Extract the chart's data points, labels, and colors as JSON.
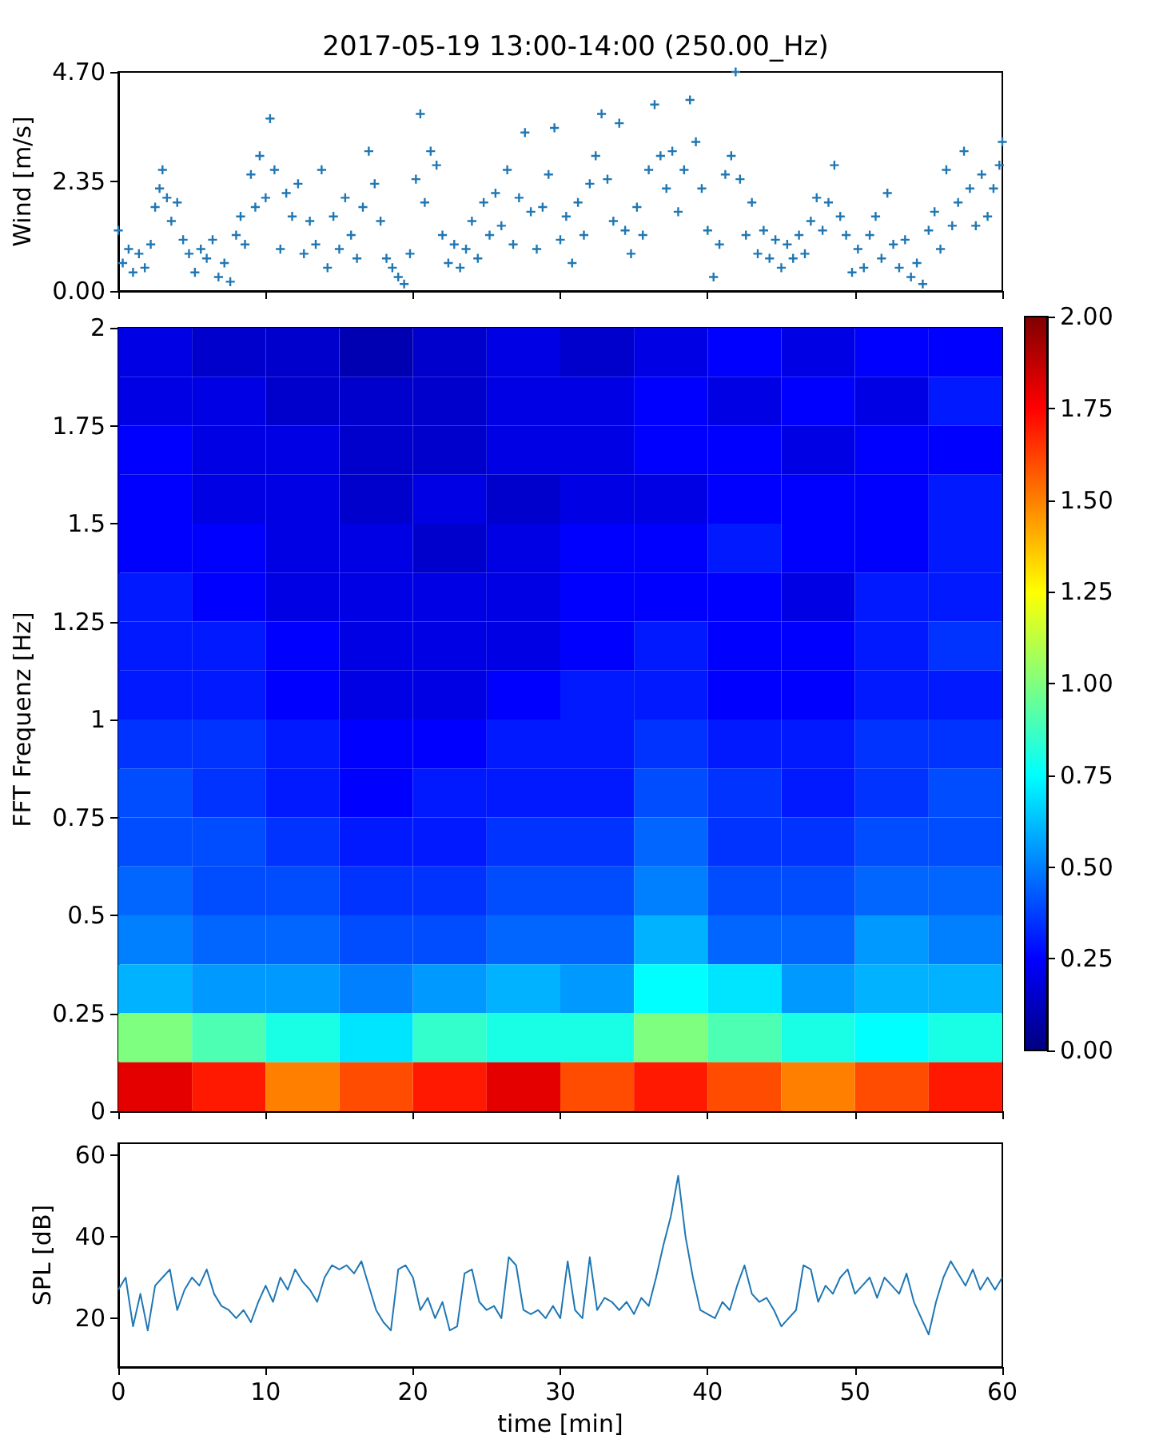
{
  "chart_data": [
    {
      "type": "scatter",
      "title": "2017-05-19 13:00-14:00 (250.00_Hz)",
      "ylabel": "Wind [m/s]",
      "color": "#1f77b4",
      "marker": "cross",
      "tick_labels": "y",
      "x": [
        0,
        0.3,
        0.7,
        1,
        1.4,
        1.8,
        2.2,
        2.5,
        2.8,
        3,
        3.3,
        3.6,
        4,
        4.4,
        4.8,
        5.2,
        5.6,
        6,
        6.4,
        6.8,
        7.2,
        7.6,
        8,
        8.3,
        8.6,
        9,
        9.3,
        9.6,
        10,
        10.3,
        10.6,
        11,
        11.4,
        11.8,
        12.2,
        12.6,
        13,
        13.4,
        13.8,
        14.2,
        14.6,
        15,
        15.4,
        15.8,
        16.2,
        16.6,
        17,
        17.4,
        17.8,
        18.2,
        18.6,
        19,
        19.4,
        19.8,
        20.2,
        20.5,
        20.8,
        21.2,
        21.6,
        22,
        22.4,
        22.8,
        23.2,
        23.6,
        24,
        24.4,
        24.8,
        25.2,
        25.6,
        26,
        26.4,
        26.8,
        27.2,
        27.6,
        28,
        28.4,
        28.8,
        29.2,
        29.6,
        30,
        30.4,
        30.8,
        31.2,
        31.6,
        32,
        32.4,
        32.8,
        33.2,
        33.6,
        34,
        34.4,
        34.8,
        35.2,
        35.6,
        36,
        36.4,
        36.8,
        37.2,
        37.6,
        38,
        38.4,
        38.8,
        39.2,
        39.6,
        40,
        40.4,
        40.8,
        41.2,
        41.6,
        41.9,
        42.2,
        42.6,
        43,
        43.4,
        43.8,
        44.2,
        44.6,
        45,
        45.4,
        45.8,
        46.2,
        46.6,
        47,
        47.4,
        47.8,
        48.2,
        48.6,
        49,
        49.4,
        49.8,
        50.2,
        50.6,
        51,
        51.4,
        51.8,
        52.2,
        52.6,
        53,
        53.4,
        53.8,
        54.2,
        54.6,
        55,
        55.4,
        55.8,
        56.2,
        56.6,
        57,
        57.4,
        57.8,
        58.2,
        58.6,
        59,
        59.4,
        59.8,
        60
      ],
      "values": [
        1.3,
        0.6,
        0.9,
        0.4,
        0.8,
        0.5,
        1.0,
        1.8,
        2.2,
        2.6,
        2.0,
        1.5,
        1.9,
        1.1,
        0.8,
        0.4,
        0.9,
        0.7,
        1.1,
        0.3,
        0.6,
        0.2,
        1.2,
        1.6,
        1.0,
        2.5,
        1.8,
        2.9,
        2.0,
        3.7,
        2.6,
        0.9,
        2.1,
        1.6,
        2.3,
        0.8,
        1.5,
        1.0,
        2.6,
        0.5,
        1.6,
        0.9,
        2.0,
        1.2,
        0.7,
        1.8,
        3.0,
        2.3,
        1.5,
        0.7,
        0.5,
        0.3,
        0.15,
        0.8,
        2.4,
        3.8,
        1.9,
        3.0,
        2.7,
        1.2,
        0.6,
        1.0,
        0.5,
        0.9,
        1.5,
        0.7,
        1.9,
        1.2,
        2.1,
        1.4,
        2.6,
        1.0,
        2.0,
        3.4,
        1.7,
        0.9,
        1.8,
        2.5,
        3.5,
        1.1,
        1.6,
        0.6,
        1.9,
        1.2,
        2.3,
        2.9,
        3.8,
        2.4,
        1.5,
        3.6,
        1.3,
        0.8,
        1.8,
        1.2,
        2.6,
        4.0,
        2.9,
        2.2,
        3.0,
        1.7,
        2.6,
        4.1,
        3.2,
        2.2,
        1.3,
        0.3,
        1.0,
        2.5,
        2.9,
        4.7,
        2.4,
        1.2,
        1.9,
        0.8,
        1.3,
        0.7,
        1.1,
        0.5,
        1.0,
        0.7,
        1.2,
        0.8,
        1.5,
        2.0,
        1.3,
        1.9,
        2.7,
        1.6,
        1.2,
        0.4,
        0.9,
        0.5,
        1.2,
        1.6,
        0.7,
        2.1,
        1.0,
        0.5,
        1.1,
        0.3,
        0.6,
        0.15,
        1.3,
        1.7,
        0.9,
        2.6,
        1.4,
        1.9,
        3.0,
        2.2,
        1.4,
        2.5,
        1.6,
        2.2,
        2.7,
        3.2
      ],
      "xlim": [
        0,
        60
      ],
      "xticks": [
        0,
        10,
        20,
        30,
        40,
        50,
        60
      ],
      "ylim": [
        0,
        4.7
      ],
      "yticks": [
        {
          "value": 0,
          "label": "0.00"
        },
        {
          "value": 2.35,
          "label": "2.35"
        },
        {
          "value": 4.7,
          "label": "4.70"
        }
      ]
    },
    {
      "type": "heatmap",
      "ylabel": "FFT Frequenz [Hz]",
      "tick_labels": "y",
      "cells": [
        [
          0.2,
          0.15,
          0.15,
          0.1,
          0.15,
          0.2,
          0.15,
          0.2,
          0.25,
          0.2,
          0.25,
          0.25
        ],
        [
          0.2,
          0.2,
          0.15,
          0.15,
          0.15,
          0.2,
          0.2,
          0.25,
          0.2,
          0.25,
          0.2,
          0.3
        ],
        [
          0.25,
          0.2,
          0.2,
          0.15,
          0.15,
          0.2,
          0.2,
          0.25,
          0.25,
          0.2,
          0.25,
          0.25
        ],
        [
          0.25,
          0.2,
          0.2,
          0.15,
          0.2,
          0.15,
          0.2,
          0.2,
          0.25,
          0.25,
          0.25,
          0.3
        ],
        [
          0.25,
          0.25,
          0.2,
          0.2,
          0.15,
          0.2,
          0.25,
          0.25,
          0.3,
          0.25,
          0.25,
          0.3
        ],
        [
          0.3,
          0.25,
          0.2,
          0.2,
          0.2,
          0.2,
          0.25,
          0.25,
          0.25,
          0.2,
          0.3,
          0.3
        ],
        [
          0.3,
          0.3,
          0.25,
          0.2,
          0.2,
          0.2,
          0.25,
          0.3,
          0.25,
          0.25,
          0.3,
          0.35
        ],
        [
          0.3,
          0.3,
          0.25,
          0.2,
          0.2,
          0.25,
          0.3,
          0.3,
          0.25,
          0.25,
          0.3,
          0.3
        ],
        [
          0.35,
          0.35,
          0.3,
          0.25,
          0.25,
          0.3,
          0.3,
          0.35,
          0.3,
          0.3,
          0.35,
          0.35
        ],
        [
          0.4,
          0.35,
          0.3,
          0.25,
          0.3,
          0.3,
          0.3,
          0.4,
          0.35,
          0.3,
          0.35,
          0.4
        ],
        [
          0.4,
          0.4,
          0.35,
          0.3,
          0.3,
          0.35,
          0.35,
          0.45,
          0.35,
          0.35,
          0.4,
          0.4
        ],
        [
          0.45,
          0.4,
          0.4,
          0.35,
          0.35,
          0.4,
          0.4,
          0.5,
          0.4,
          0.4,
          0.45,
          0.45
        ],
        [
          0.5,
          0.45,
          0.45,
          0.4,
          0.4,
          0.45,
          0.45,
          0.6,
          0.45,
          0.45,
          0.55,
          0.5
        ],
        [
          0.6,
          0.55,
          0.55,
          0.5,
          0.55,
          0.6,
          0.55,
          0.75,
          0.7,
          0.55,
          0.6,
          0.6
        ],
        [
          1.0,
          0.9,
          0.8,
          0.7,
          0.85,
          0.8,
          0.8,
          1.0,
          0.9,
          0.8,
          0.75,
          0.8
        ],
        [
          1.8,
          1.7,
          1.5,
          1.6,
          1.7,
          1.8,
          1.6,
          1.7,
          1.6,
          1.5,
          1.6,
          1.7
        ]
      ],
      "clim": [
        0,
        2
      ],
      "cticks": [
        {
          "value": 0,
          "label": "0.00"
        },
        {
          "value": 0.25,
          "label": "0.25"
        },
        {
          "value": 0.5,
          "label": "0.50"
        },
        {
          "value": 0.75,
          "label": "0.75"
        },
        {
          "value": 1,
          "label": "1.00"
        },
        {
          "value": 1.25,
          "label": "1.25"
        },
        {
          "value": 1.5,
          "label": "1.50"
        },
        {
          "value": 1.75,
          "label": "1.75"
        },
        {
          "value": 2,
          "label": "2.00"
        }
      ],
      "xlim": [
        0,
        60
      ],
      "xticks": [
        0,
        10,
        20,
        30,
        40,
        50,
        60
      ],
      "ylim": [
        0,
        2
      ],
      "yticks": [
        0,
        0.25,
        0.5,
        0.75,
        1,
        1.25,
        1.5,
        1.75,
        2
      ]
    },
    {
      "type": "line",
      "xlabel": "time [min]",
      "ylabel": "SPL [dB]",
      "color": "#1f77b4",
      "x": [
        0,
        0.5,
        1,
        1.5,
        2,
        2.5,
        3,
        3.5,
        4,
        4.5,
        5,
        5.5,
        6,
        6.5,
        7,
        7.5,
        8,
        8.5,
        9,
        9.5,
        10,
        10.5,
        11,
        11.5,
        12,
        12.5,
        13,
        13.5,
        14,
        14.5,
        15,
        15.5,
        16,
        16.5,
        17,
        17.5,
        18,
        18.5,
        19,
        19.5,
        20,
        20.5,
        21,
        21.5,
        22,
        22.5,
        23,
        23.5,
        24,
        24.5,
        25,
        25.5,
        26,
        26.5,
        27,
        27.5,
        28,
        28.5,
        29,
        29.5,
        30,
        30.5,
        31,
        31.5,
        32,
        32.5,
        33,
        33.5,
        34,
        34.5,
        35,
        35.5,
        36,
        36.5,
        37,
        37.5,
        38,
        38.5,
        39,
        39.5,
        40,
        40.5,
        41,
        41.5,
        42,
        42.5,
        43,
        43.5,
        44,
        44.5,
        45,
        45.5,
        46,
        46.5,
        47,
        47.5,
        48,
        48.5,
        49,
        49.5,
        50,
        50.5,
        51,
        51.5,
        52,
        52.5,
        53,
        53.5,
        54,
        54.5,
        55,
        55.5,
        56,
        56.5,
        57,
        57.5,
        58,
        58.5,
        59,
        59.5,
        60
      ],
      "values": [
        27,
        30,
        18,
        26,
        17,
        28,
        30,
        32,
        22,
        27,
        30,
        28,
        32,
        26,
        23,
        22,
        20,
        22,
        19,
        24,
        28,
        24,
        30,
        27,
        32,
        29,
        27,
        24,
        30,
        33,
        32,
        33,
        31,
        34,
        28,
        22,
        19,
        17,
        32,
        33,
        30,
        22,
        25,
        20,
        24,
        17,
        18,
        31,
        32,
        24,
        22,
        23,
        20,
        35,
        33,
        22,
        21,
        22,
        20,
        23,
        20,
        34,
        22,
        20,
        35,
        22,
        25,
        24,
        22,
        24,
        21,
        25,
        23,
        30,
        38,
        45,
        55,
        40,
        30,
        22,
        21,
        20,
        24,
        22,
        28,
        33,
        26,
        24,
        25,
        22,
        18,
        20,
        22,
        33,
        32,
        24,
        28,
        26,
        30,
        32,
        26,
        28,
        30,
        25,
        30,
        28,
        26,
        31,
        24,
        20,
        16,
        24,
        30,
        34,
        31,
        28,
        32,
        27,
        30,
        27,
        30
      ],
      "xlim": [
        0,
        60
      ],
      "xticks": [
        0,
        10,
        20,
        30,
        40,
        50,
        60
      ],
      "ylim": [
        8,
        63
      ],
      "yticks": [
        20,
        40,
        60
      ]
    }
  ]
}
